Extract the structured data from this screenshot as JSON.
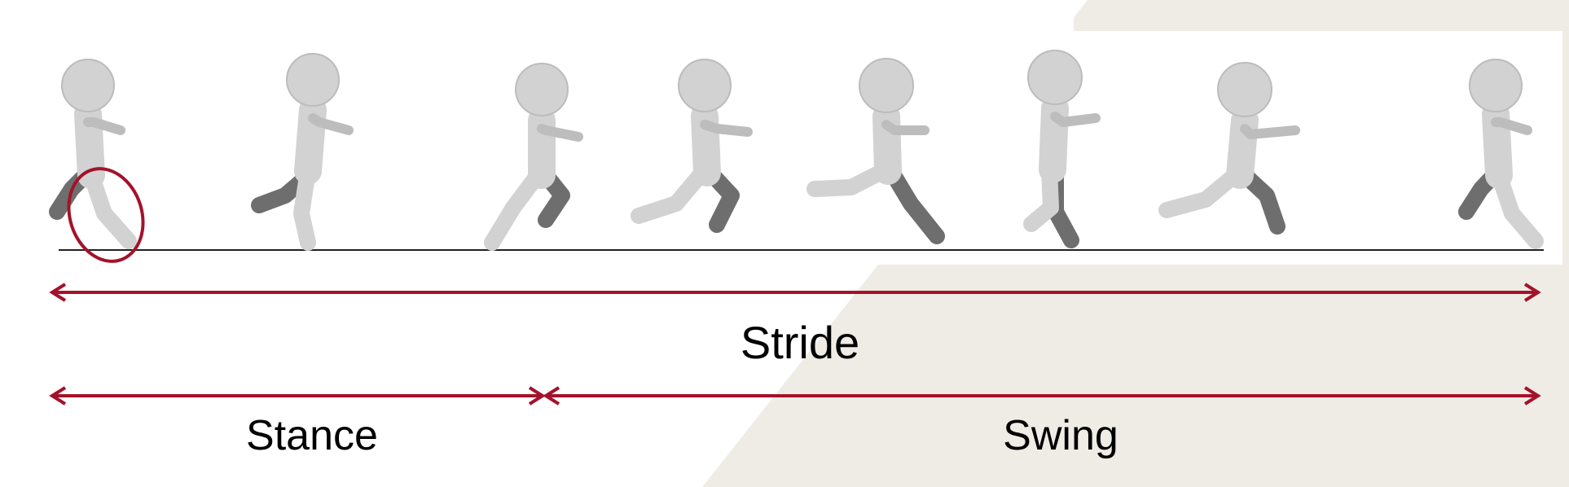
{
  "diagram": {
    "stride_label": "Stride",
    "stance_label": "Stance",
    "swing_label": "Swing"
  },
  "colors": {
    "arrow": "#a4122a",
    "highlight_circle": "#a4122a",
    "figure_light": "#d2d2d2",
    "figure_dark": "#6e6e6e",
    "ground_line": "#222222",
    "backdrop": "#efece6"
  },
  "icons": {
    "figures": [
      "running-figure-icon",
      "running-figure-icon",
      "running-figure-icon",
      "running-figure-icon",
      "running-figure-icon",
      "running-figure-icon",
      "running-figure-icon",
      "running-figure-icon"
    ],
    "highlight": "foot-highlight-circle"
  }
}
